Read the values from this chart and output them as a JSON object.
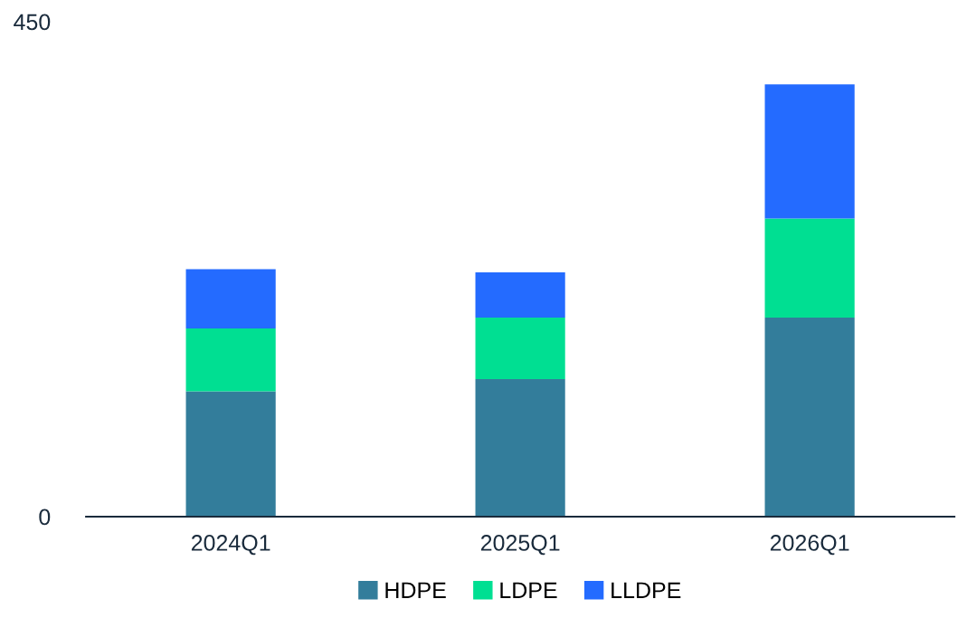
{
  "chart_data": {
    "type": "bar",
    "stacked": true,
    "categories": [
      "2024Q1",
      "2025Q1",
      "2026Q1"
    ],
    "series": [
      {
        "name": "HDPE",
        "color": "#337d9b",
        "values": [
          114,
          125,
          181
        ]
      },
      {
        "name": "LDPE",
        "color": "#00df92",
        "values": [
          57,
          56,
          90
        ]
      },
      {
        "name": "LLDPE",
        "color": "#246bff",
        "values": [
          54,
          41,
          122
        ]
      }
    ],
    "ylim": [
      0,
      450
    ],
    "yticks": [
      0,
      450
    ],
    "grid": false,
    "legend": "bottom"
  }
}
